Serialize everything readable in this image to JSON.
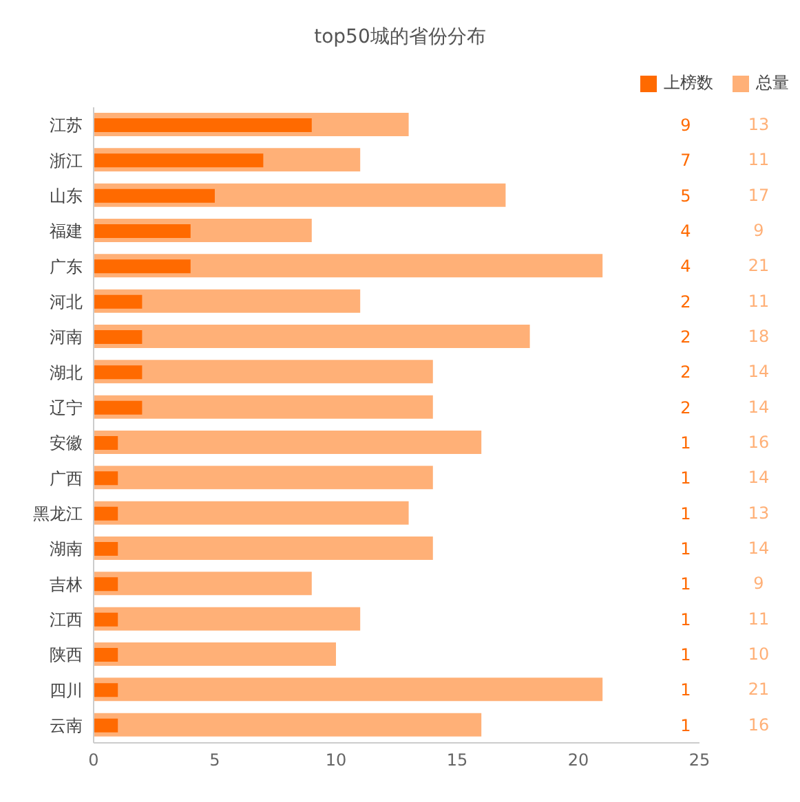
{
  "chart_data": {
    "type": "bar",
    "orientation": "horizontal",
    "title": "top50城的省份分布",
    "categories": [
      "江苏",
      "浙江",
      "山东",
      "福建",
      "广东",
      "河北",
      "河南",
      "湖北",
      "辽宁",
      "安徽",
      "广西",
      "黑龙江",
      "湖南",
      "吉林",
      "江西",
      "陕西",
      "四川",
      "云南"
    ],
    "series": [
      {
        "name": "上榜数",
        "color": "#ff6a00",
        "values": [
          9,
          7,
          5,
          4,
          4,
          2,
          2,
          2,
          2,
          1,
          1,
          1,
          1,
          1,
          1,
          1,
          1,
          1
        ]
      },
      {
        "name": "总量",
        "color": "#ffb077",
        "values": [
          13,
          11,
          17,
          9,
          21,
          11,
          18,
          14,
          14,
          16,
          14,
          13,
          14,
          9,
          11,
          10,
          21,
          16
        ]
      }
    ],
    "xlim": [
      0,
      25
    ],
    "xticks": [
      0,
      5,
      10,
      15,
      20,
      25
    ],
    "data_labels": true,
    "legend": "top right"
  }
}
